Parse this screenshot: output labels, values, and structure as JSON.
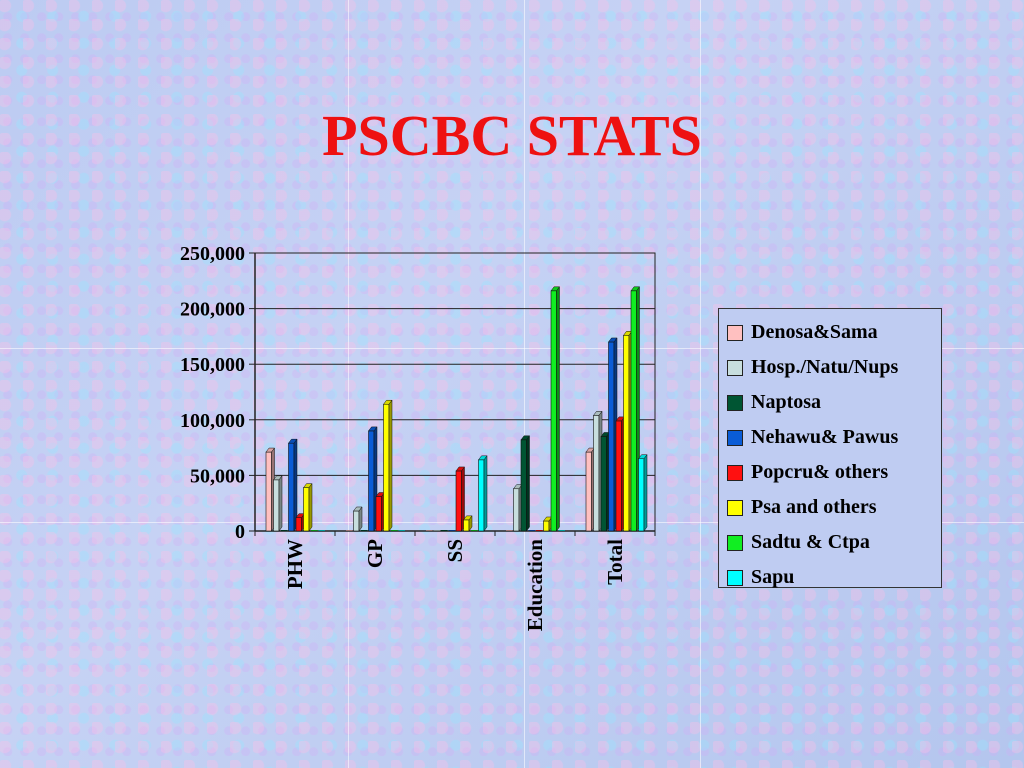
{
  "page": {
    "title": "PSCBC STATS"
  },
  "chart_data": {
    "type": "bar",
    "style": "3d-clustered",
    "title": "",
    "xlabel": "",
    "ylabel": "",
    "ylim": [
      0,
      250000
    ],
    "yticks": [
      "0",
      "50,000",
      "100,000",
      "150,000",
      "200,000",
      "250,000"
    ],
    "ytick_values": [
      0,
      50000,
      100000,
      150000,
      200000,
      250000
    ],
    "grid": true,
    "legend_position": "right",
    "categories": [
      "PHW",
      "GP",
      "SS",
      "Education",
      "Total"
    ],
    "series": [
      {
        "name": "Denosa&Sama",
        "color": "#ffc0c0",
        "values": [
          71000,
          0,
          0,
          0,
          71000
        ]
      },
      {
        "name": "Hosp./Natu/Nups",
        "color": "#c8dede",
        "values": [
          46000,
          18000,
          0,
          38000,
          104000
        ]
      },
      {
        "name": "Naptosa",
        "color": "#005533",
        "values": [
          0,
          0,
          0,
          82000,
          85000
        ]
      },
      {
        "name": "Nehawu& Pawus",
        "color": "#0a5cd6",
        "values": [
          79000,
          90000,
          0,
          0,
          170000
        ]
      },
      {
        "name": "Popcru& others",
        "color": "#ff1010",
        "values": [
          12000,
          31000,
          54000,
          0,
          99000
        ]
      },
      {
        "name": "Psa and others",
        "color": "#ffff00",
        "values": [
          39000,
          114000,
          10000,
          9000,
          176000
        ]
      },
      {
        "name": "Sadtu & Ctpa",
        "color": "#11ee22",
        "values": [
          0,
          0,
          0,
          216000,
          216000
        ]
      },
      {
        "name": "Sapu",
        "color": "#00ffff",
        "values": [
          0,
          0,
          64000,
          0,
          65000
        ]
      }
    ]
  }
}
